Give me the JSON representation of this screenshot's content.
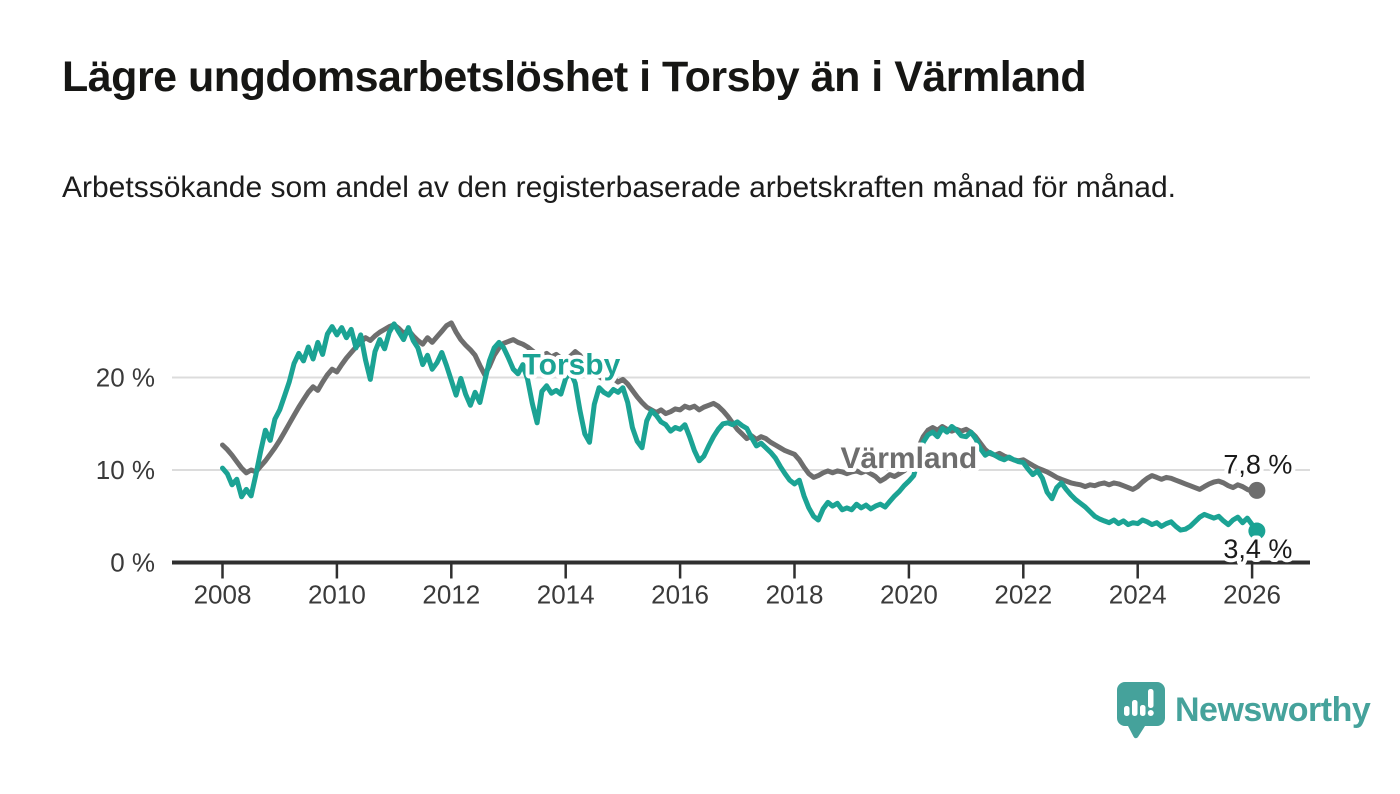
{
  "header": {
    "title": "Lägre ungdomsarbetslöshet i Torsby än i Värmland",
    "subtitle": "Arbetssökande som andel av den registerbaserade arbetskraften månad för månad."
  },
  "chart_data": {
    "type": "line",
    "title": "Lägre ungdomsarbetslöshet i Torsby än i Värmland",
    "subtitle": "Arbetssökande som andel av den registerbaserade arbetskraften månad för månad.",
    "unit": "%",
    "grid": "horizontal",
    "legend": "inline-series-labels",
    "x_axis": {
      "start_year": 2008,
      "points_per_year": 12,
      "tick_years": [
        2008,
        2010,
        2012,
        2014,
        2016,
        2018,
        2020,
        2022,
        2024,
        2026
      ]
    },
    "y_axis": {
      "range": [
        0,
        27
      ],
      "ticks": [
        {
          "value": 0,
          "label": "0 %"
        },
        {
          "value": 10,
          "label": "10 %"
        },
        {
          "value": 20,
          "label": "20 %"
        }
      ]
    },
    "series": [
      {
        "name": "Värmland",
        "color": "#6e6e6e",
        "end_value": 7.8,
        "end_value_label": "7,8 %",
        "end_label_side": "above",
        "label_anchor": {
          "year": 2020.0,
          "value": 10.2
        },
        "values": [
          12.7,
          12.2,
          11.6,
          10.9,
          10.2,
          9.7,
          10.0,
          9.8,
          10.4,
          11.0,
          11.7,
          12.4,
          13.2,
          14.1,
          15.0,
          15.9,
          16.8,
          17.6,
          18.4,
          19.0,
          18.6,
          19.5,
          20.3,
          20.9,
          20.6,
          21.4,
          22.1,
          22.7,
          23.3,
          23.8,
          24.3,
          24.0,
          24.5,
          24.9,
          25.2,
          25.5,
          25.7,
          25.3,
          24.8,
          25.1,
          24.5,
          24.0,
          23.6,
          24.3,
          23.8,
          24.4,
          25.0,
          25.6,
          25.9,
          24.9,
          24.1,
          23.5,
          23.0,
          22.4,
          21.3,
          20.3,
          21.2,
          22.4,
          23.2,
          23.7,
          23.9,
          24.1,
          23.8,
          23.6,
          23.3,
          22.9,
          22.5,
          22.3,
          22.6,
          22.2,
          22.5,
          22.1,
          21.8,
          22.3,
          22.8,
          22.4,
          21.6,
          20.9,
          20.4,
          20.1,
          19.8,
          19.6,
          19.9,
          19.5,
          19.8,
          19.3,
          18.6,
          17.9,
          17.3,
          16.8,
          16.5,
          16.2,
          16.5,
          16.1,
          16.3,
          16.6,
          16.5,
          16.9,
          16.7,
          16.9,
          16.5,
          16.8,
          17.0,
          17.2,
          16.9,
          16.4,
          15.8,
          15.1,
          14.4,
          13.9,
          13.4,
          13.7,
          13.3,
          13.6,
          13.4,
          13.0,
          12.7,
          12.4,
          12.1,
          11.9,
          11.7,
          11.1,
          10.3,
          9.6,
          9.2,
          9.4,
          9.7,
          9.9,
          9.7,
          9.9,
          9.8,
          9.6,
          9.8,
          9.9,
          9.7,
          9.9,
          9.6,
          9.3,
          8.8,
          9.1,
          9.5,
          9.3,
          9.6,
          9.9,
          10.3,
          11.0,
          12.4,
          13.6,
          14.3,
          14.6,
          14.3,
          14.7,
          14.4,
          14.2,
          14.4,
          14.2,
          14.4,
          14.1,
          13.6,
          12.9,
          12.2,
          11.8,
          11.6,
          11.8,
          11.5,
          11.3,
          11.1,
          11.0,
          11.1,
          10.8,
          10.5,
          10.2,
          10.0,
          9.8,
          9.5,
          9.2,
          9.0,
          8.8,
          8.6,
          8.5,
          8.4,
          8.2,
          8.4,
          8.3,
          8.5,
          8.6,
          8.4,
          8.6,
          8.5,
          8.3,
          8.1,
          7.9,
          8.2,
          8.7,
          9.1,
          9.4,
          9.2,
          9.0,
          9.2,
          9.1,
          8.9,
          8.7,
          8.5,
          8.3,
          8.1,
          7.9,
          8.2,
          8.5,
          8.7,
          8.8,
          8.6,
          8.3,
          8.1,
          8.4,
          8.2,
          7.9,
          7.7,
          7.8
        ]
      },
      {
        "name": "Torsby",
        "color": "#1ba394",
        "end_value": 3.4,
        "end_value_label": "3,4 %",
        "end_label_side": "below",
        "label_anchor": {
          "year": 2014.1,
          "value": 20.3
        },
        "values": [
          10.2,
          9.6,
          8.4,
          9.0,
          7.1,
          7.9,
          7.2,
          9.5,
          12.0,
          14.3,
          13.2,
          15.5,
          16.5,
          18.0,
          19.5,
          21.5,
          22.6,
          21.8,
          23.3,
          22.0,
          23.8,
          22.5,
          24.7,
          25.5,
          24.6,
          25.4,
          24.3,
          25.2,
          23.2,
          24.6,
          21.9,
          19.8,
          22.8,
          24.1,
          23.1,
          24.9,
          25.8,
          24.9,
          24.1,
          25.4,
          24.0,
          23.2,
          21.4,
          22.4,
          20.9,
          21.6,
          22.7,
          21.3,
          19.7,
          18.1,
          19.9,
          18.2,
          17.0,
          18.4,
          17.3,
          19.6,
          21.8,
          23.2,
          23.8,
          23.2,
          22.1,
          20.9,
          20.4,
          21.4,
          19.8,
          17.2,
          15.1,
          18.5,
          19.1,
          18.3,
          18.6,
          18.2,
          19.9,
          20.6,
          19.4,
          16.4,
          13.9,
          13.0,
          17.1,
          18.9,
          18.4,
          18.1,
          18.7,
          18.4,
          18.9,
          17.3,
          14.6,
          13.1,
          12.4,
          15.3,
          16.4,
          15.9,
          15.2,
          14.9,
          14.2,
          14.6,
          14.4,
          14.9,
          13.6,
          12.1,
          11.0,
          11.5,
          12.6,
          13.6,
          14.4,
          15.0,
          15.1,
          14.9,
          15.2,
          14.8,
          14.5,
          13.5,
          12.6,
          12.9,
          12.4,
          11.9,
          11.3,
          10.4,
          9.6,
          8.9,
          8.5,
          8.9,
          7.2,
          5.9,
          5.0,
          4.6,
          5.8,
          6.5,
          6.1,
          6.4,
          5.7,
          5.9,
          5.7,
          6.3,
          5.9,
          6.2,
          5.8,
          6.1,
          6.3,
          6.0,
          6.6,
          7.2,
          7.7,
          8.3,
          8.8,
          9.4,
          11.2,
          13.0,
          13.8,
          14.1,
          13.6,
          14.5,
          14.1,
          14.7,
          14.3,
          13.7,
          13.6,
          14.1,
          13.4,
          12.3,
          11.6,
          11.9,
          11.6,
          11.3,
          11.1,
          11.4,
          11.1,
          10.9,
          10.8,
          10.1,
          9.5,
          9.9,
          9.1,
          7.6,
          6.9,
          8.1,
          8.6,
          7.9,
          7.3,
          6.8,
          6.4,
          6.0,
          5.5,
          5.0,
          4.7,
          4.5,
          4.3,
          4.6,
          4.2,
          4.5,
          4.1,
          4.3,
          4.2,
          4.6,
          4.4,
          4.1,
          4.3,
          3.9,
          4.2,
          4.4,
          3.9,
          3.5,
          3.6,
          3.9,
          4.4,
          4.9,
          5.2,
          5.0,
          4.8,
          5.0,
          4.5,
          4.1,
          4.6,
          4.9,
          4.3,
          4.8,
          4.1,
          3.4
        ]
      }
    ],
    "colors": {
      "gridline": "#dcdcdc",
      "axis": "#2f2f2f",
      "tick_label": "#3a3a3a"
    }
  },
  "footer": {
    "logo_text": "Newsworthy",
    "logo_color": "#45a29b"
  }
}
